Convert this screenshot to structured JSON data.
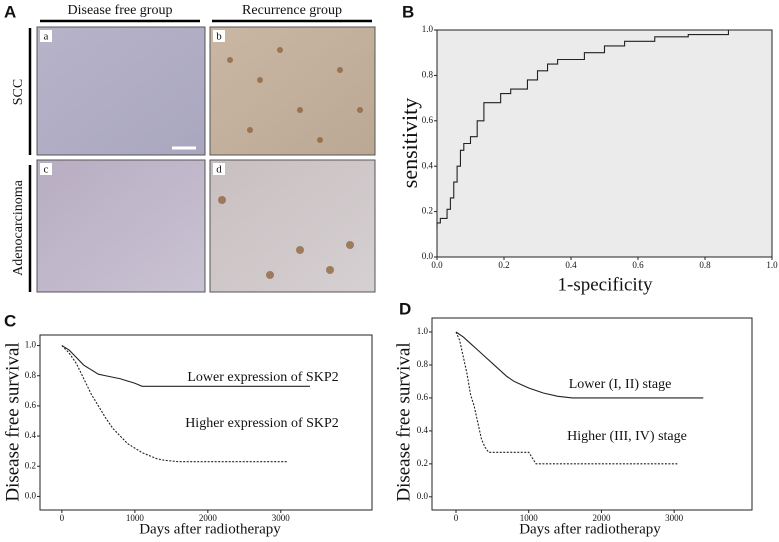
{
  "panel_a": {
    "label": "A",
    "columns": [
      "Disease free group",
      "Recurrence group"
    ],
    "rows": [
      "SCC",
      "Adenocarcinoma"
    ],
    "tiles": [
      "a",
      "b",
      "c",
      "d"
    ]
  },
  "chart_data": [
    {
      "type": "line",
      "panel": "B",
      "xlabel": "1-specificity",
      "ylabel": "sensitivity",
      "background": "#ebebeb",
      "xlim": [
        0,
        1
      ],
      "ylim": [
        0,
        1
      ],
      "xticks": [
        {
          "value": 0,
          "label": "0.0"
        },
        {
          "value": 0.2,
          "label": "0.2"
        },
        {
          "value": 0.4,
          "label": "0.4"
        },
        {
          "value": 0.6,
          "label": "0.6"
        },
        {
          "value": 0.8,
          "label": "0.8"
        },
        {
          "value": 1,
          "label": "1.0"
        }
      ],
      "yticks": [
        {
          "value": 0,
          "label": "0.0"
        },
        {
          "value": 0.2,
          "label": "0.2"
        },
        {
          "value": 0.4,
          "label": "0.4"
        },
        {
          "value": 0.6,
          "label": "0.6"
        },
        {
          "value": 0.8,
          "label": "0.8"
        },
        {
          "value": 1,
          "label": "1.0"
        }
      ],
      "series": [
        {
          "color": "#222222",
          "line_style": "solid",
          "x": [
            0,
            0,
            0.01,
            0.01,
            0.03,
            0.03,
            0.04,
            0.04,
            0.05,
            0.05,
            0.06,
            0.06,
            0.07,
            0.07,
            0.08,
            0.08,
            0.1,
            0.1,
            0.12,
            0.12,
            0.14,
            0.14,
            0.19,
            0.19,
            0.22,
            0.22,
            0.27,
            0.27,
            0.3,
            0.3,
            0.33,
            0.33,
            0.36,
            0.36,
            0.44,
            0.44,
            0.5,
            0.5,
            0.56,
            0.56,
            0.65,
            0.65,
            0.75,
            0.75,
            0.87,
            0.87,
            1.0
          ],
          "values": [
            0.13,
            0.15,
            0.15,
            0.17,
            0.17,
            0.21,
            0.21,
            0.26,
            0.26,
            0.33,
            0.33,
            0.4,
            0.4,
            0.47,
            0.47,
            0.5,
            0.5,
            0.53,
            0.53,
            0.6,
            0.6,
            0.68,
            0.68,
            0.72,
            0.72,
            0.74,
            0.74,
            0.78,
            0.78,
            0.82,
            0.82,
            0.85,
            0.85,
            0.87,
            0.87,
            0.9,
            0.9,
            0.93,
            0.93,
            0.95,
            0.95,
            0.97,
            0.97,
            0.98,
            0.98,
            1.0,
            1.0
          ]
        }
      ]
    },
    {
      "type": "line",
      "panel": "C",
      "xlabel": "Days after radiotherapy",
      "ylabel": "Disease free survival",
      "xlim": [
        -300,
        4250
      ],
      "ylim": [
        -0.09,
        1.07
      ],
      "xticks": [
        0,
        1000,
        2000,
        3000
      ],
      "yticks": [
        {
          "value": 0,
          "label": "0.0"
        },
        {
          "value": 0.2,
          "label": "0.2"
        },
        {
          "value": 0.4,
          "label": "0.4"
        },
        {
          "value": 0.6,
          "label": "0.6"
        },
        {
          "value": 0.8,
          "label": "0.8"
        },
        {
          "value": 1,
          "label": "1.0"
        }
      ],
      "series": [
        {
          "name": "Lower expression of SKP2",
          "color": "#222222",
          "line_style": "solid",
          "x": [
            0,
            100,
            200,
            300,
            400,
            500,
            600,
            800,
            1000,
            1100,
            3400
          ],
          "values": [
            1,
            0.97,
            0.92,
            0.87,
            0.84,
            0.81,
            0.8,
            0.78,
            0.75,
            0.73,
            0.73
          ]
        },
        {
          "name": "Higher expression of SKP2",
          "color": "#222222",
          "line_style": "dashed",
          "x": [
            0,
            100,
            200,
            300,
            400,
            500,
            600,
            700,
            800,
            900,
            1000,
            1100,
            1200,
            1300,
            1400,
            1600,
            3100
          ],
          "values": [
            1,
            0.95,
            0.88,
            0.78,
            0.68,
            0.6,
            0.52,
            0.45,
            0.4,
            0.35,
            0.32,
            0.29,
            0.27,
            0.25,
            0.24,
            0.23,
            0.23
          ]
        }
      ]
    },
    {
      "type": "line",
      "panel": "D",
      "xlabel": "Days after radiotherapy",
      "ylabel": "Disease free survival",
      "xlim": [
        -330,
        4070
      ],
      "ylim": [
        -0.08,
        1.085
      ],
      "xticks": [
        0,
        1000,
        2000,
        3000
      ],
      "yticks": [
        {
          "value": 0,
          "label": "0.0"
        },
        {
          "value": 0.2,
          "label": "0.2"
        },
        {
          "value": 0.4,
          "label": "0.4"
        },
        {
          "value": 0.6,
          "label": "0.6"
        },
        {
          "value": 0.8,
          "label": "0.8"
        },
        {
          "value": 1,
          "label": "1.0"
        }
      ],
      "series": [
        {
          "name": "Lower (I, II) stage",
          "color": "#222222",
          "line_style": "solid",
          "x": [
            0,
            100,
            200,
            300,
            400,
            500,
            600,
            700,
            800,
            900,
            1000,
            1200,
            1400,
            1600,
            3400
          ],
          "values": [
            1,
            0.97,
            0.93,
            0.89,
            0.85,
            0.81,
            0.77,
            0.73,
            0.7,
            0.68,
            0.66,
            0.63,
            0.61,
            0.6,
            0.6
          ]
        },
        {
          "name": "Higher (III, IV) stage",
          "color": "#222222",
          "line_style": "dashed",
          "x": [
            0,
            50,
            100,
            150,
            200,
            250,
            300,
            350,
            400,
            450,
            1000,
            1100,
            3050
          ],
          "values": [
            1,
            0.95,
            0.85,
            0.75,
            0.62,
            0.55,
            0.45,
            0.35,
            0.3,
            0.27,
            0.27,
            0.2,
            0.2
          ]
        }
      ]
    }
  ]
}
